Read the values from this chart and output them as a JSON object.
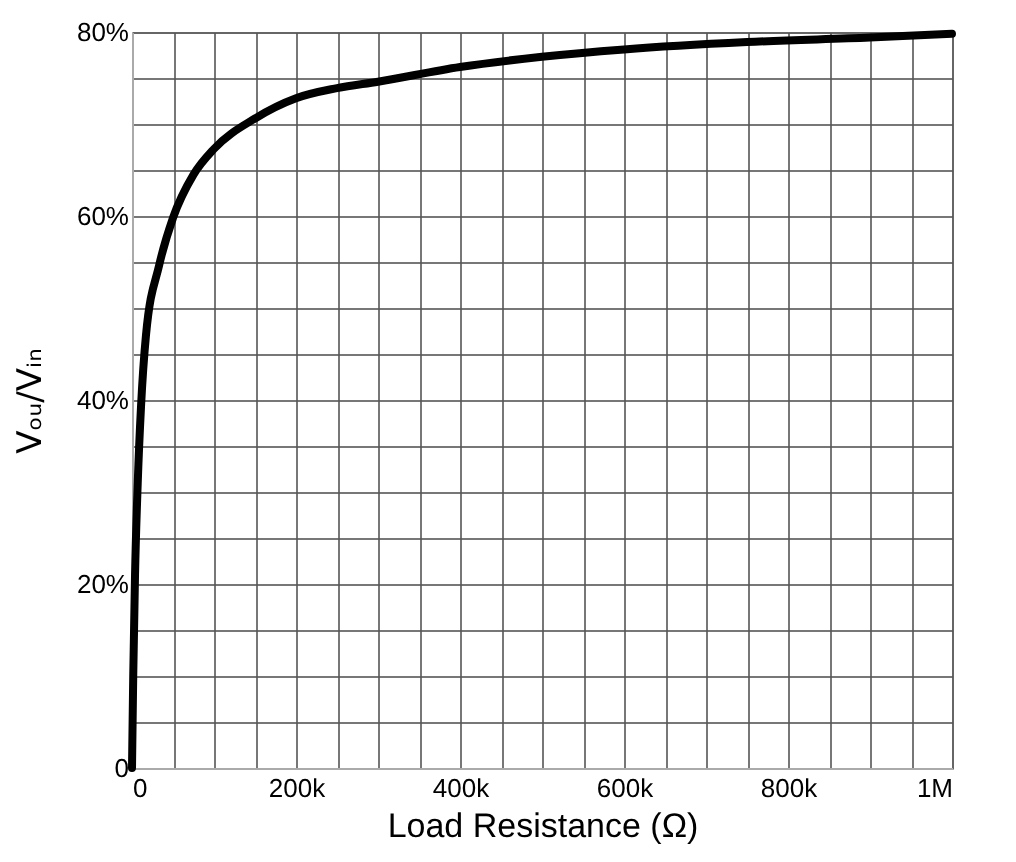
{
  "chart_data": {
    "type": "line",
    "xlabel": "Load Resistance (Ω)",
    "ylabel": "Vₒᵤ/Vᵢₙ",
    "x": [
      0,
      1500,
      3700,
      7000,
      11000,
      17000,
      33000,
      50000,
      75000,
      100000,
      150000,
      200000,
      250000,
      300000,
      400000,
      500000,
      600000,
      750000,
      900000,
      1000000
    ],
    "series": [
      {
        "color": "#000000",
        "values": [
          0,
          10,
          21,
          31,
          39.3,
          47,
          54.6,
          59.8,
          64.5,
          67.3,
          70.6,
          72.8,
          73.9,
          74.6,
          76.2,
          77.3,
          78.1,
          78.9,
          79.4,
          79.8
        ]
      }
    ],
    "xlim": [
      0,
      1000000
    ],
    "xticks": [
      0,
      {
        "value": 50000,
        "label": null
      },
      {
        "value": 100000,
        "label": null
      },
      {
        "value": 150000,
        "label": null
      },
      {
        "value": 200000,
        "label": "200k"
      },
      {
        "value": 250000,
        "label": null
      },
      {
        "value": 300000,
        "label": null
      },
      {
        "value": 350000,
        "label": null
      },
      {
        "value": 400000,
        "label": "400k"
      },
      {
        "value": 450000,
        "label": null
      },
      {
        "value": 500000,
        "label": null
      },
      {
        "value": 550000,
        "label": null
      },
      {
        "value": 600000,
        "label": "600k"
      },
      {
        "value": 650000,
        "label": null
      },
      {
        "value": 700000,
        "label": null
      },
      {
        "value": 750000,
        "label": null
      },
      {
        "value": 800000,
        "label": "800k"
      },
      {
        "value": 850000,
        "label": null
      },
      {
        "value": 900000,
        "label": null
      },
      {
        "value": 950000,
        "label": null
      },
      {
        "value": 1000000,
        "label": "1M"
      }
    ],
    "ylim": [
      0,
      80
    ],
    "yticks": [
      0,
      {
        "value": 5,
        "label": null
      },
      {
        "value": 10,
        "label": null
      },
      {
        "value": 15,
        "label": null
      },
      {
        "value": 20,
        "label": "20%"
      },
      {
        "value": 25,
        "label": null
      },
      {
        "value": 30,
        "label": null
      },
      {
        "value": 35,
        "label": null
      },
      {
        "value": 40,
        "label": "40%"
      },
      {
        "value": 45,
        "label": null
      },
      {
        "value": 50,
        "label": null
      },
      {
        "value": 55,
        "label": null
      },
      {
        "value": 60,
        "label": "60%"
      },
      {
        "value": 65,
        "label": null
      },
      {
        "value": 70,
        "label": null
      },
      {
        "value": 75,
        "label": null
      },
      {
        "value": 80,
        "label": "80%"
      }
    ],
    "grid": true,
    "marker": "none",
    "line_style": "solid"
  }
}
